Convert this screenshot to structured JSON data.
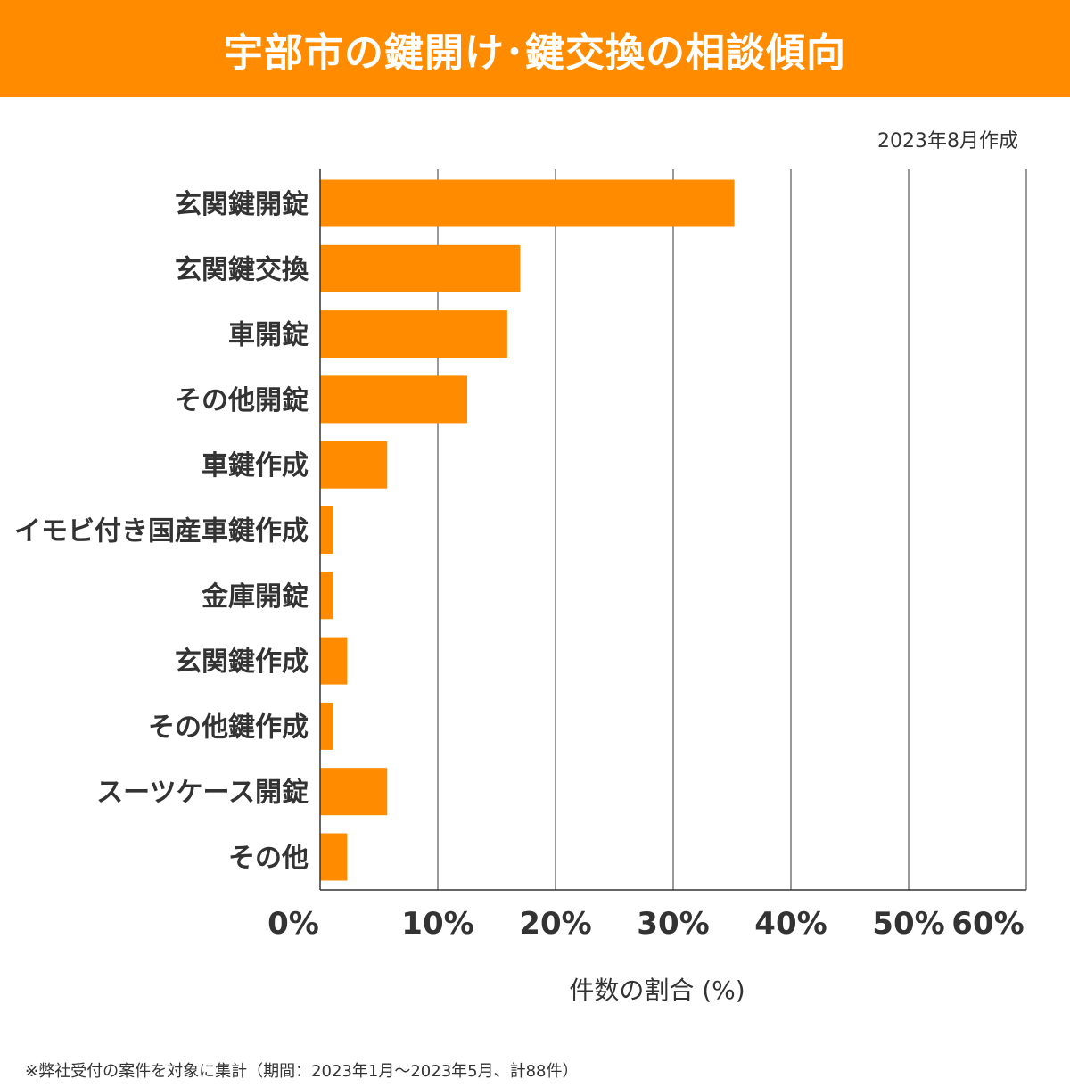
{
  "title": "宇部市の鍵開け･鍵交換の相談傾向",
  "date_note": "2023年8月作成",
  "footnote": "※弊社受付の案件を対象に集計（期間：2023年1月～2023年5月、計88件）",
  "colors": {
    "accent": "#ff8c00",
    "bar": "#ff8c00",
    "grid": "#333333"
  },
  "chart_data": {
    "type": "bar",
    "orientation": "horizontal",
    "title": "",
    "xlabel": "件数の割合 (%)",
    "ylabel": "",
    "xlim": [
      0,
      60
    ],
    "xticks": [
      0,
      10,
      20,
      30,
      40,
      50,
      60
    ],
    "xtick_labels": [
      "0%",
      "10%",
      "20%",
      "30%",
      "40%",
      "50%",
      "60%"
    ],
    "grid": "vertical",
    "categories": [
      "玄関鍵開錠",
      "玄関鍵交換",
      "車開錠",
      "その他開錠",
      "車鍵作成",
      "イモビ付き国産車鍵作成",
      "金庫開錠",
      "玄関鍵作成",
      "その他鍵作成",
      "スーツケース開錠",
      "その他"
    ],
    "values": [
      35.2,
      17.0,
      15.9,
      12.5,
      5.7,
      1.1,
      1.1,
      2.3,
      1.1,
      5.7,
      2.3
    ]
  }
}
